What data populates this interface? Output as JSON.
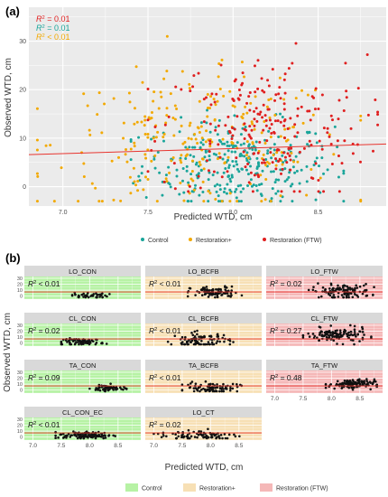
{
  "colors": {
    "panel_bg": "#ebebeb",
    "grid": "#ffffff",
    "strip_bg": "#d9d9d9",
    "fit_line": "#e8352f",
    "control": "#1aa59a",
    "restoration_plus": "#f2a900",
    "restoration_ftw": "#e01f1f",
    "bg_control": "#b7f2a5",
    "bg_restoration_plus": "#f7e0b5",
    "bg_restoration_ftw": "#f5b8b8"
  },
  "chart_data": [
    {
      "type": "scatter",
      "panel_label": "(a)",
      "xlabel": "Predicted WTD, cm",
      "ylabel": "Observed WTD, cm",
      "xlim": [
        6.8,
        8.9
      ],
      "ylim": [
        -4,
        37
      ],
      "xticks": [
        "7.0",
        "7.5",
        "8.0",
        "8.5"
      ],
      "yticks": [
        "0",
        "10",
        "20",
        "30"
      ],
      "xtick_values": [
        7.0,
        7.5,
        8.0,
        8.5
      ],
      "ytick_values": [
        0,
        10,
        20,
        30
      ],
      "fit_line": {
        "x": [
          6.8,
          8.9
        ],
        "y": [
          6.6,
          8.8
        ]
      },
      "stats": [
        {
          "prefix": "R",
          "sup": "2",
          "rest": " = 0.01",
          "color": "#e01f1f"
        },
        {
          "prefix": "R",
          "sup": "2",
          "rest": " = 0.01",
          "color": "#1aa59a"
        },
        {
          "prefix": "R",
          "sup": "2",
          "rest": " < 0.01",
          "color": "#f2a900"
        }
      ],
      "series": [
        {
          "name": "Control",
          "color": "#1aa59a",
          "n": 300,
          "x_range": [
            7.4,
            8.65
          ],
          "y_mean": 4.5,
          "y_sd": 4.5,
          "y_min": -3,
          "y_max": 22
        },
        {
          "name": "Restoration+",
          "color": "#f2a900",
          "n": 260,
          "x_range": [
            6.85,
            8.75
          ],
          "y_mean": 9,
          "y_sd": 7,
          "y_min": -3,
          "y_max": 31
        },
        {
          "name": "Restoration (FTW)",
          "color": "#e01f1f",
          "n": 230,
          "x_range": [
            7.5,
            8.85
          ],
          "y_mean": 12,
          "y_sd": 7.5,
          "y_min": -1,
          "y_max": 35
        }
      ],
      "legend": {
        "position": "bottom",
        "items": [
          {
            "label": "Control",
            "color": "#1aa59a"
          },
          {
            "label": "Restoration+",
            "color": "#f2a900"
          },
          {
            "label": "Restoration (FTW)",
            "color": "#e01f1f"
          }
        ]
      }
    },
    {
      "type": "scatter",
      "panel_label": "(b)",
      "xlabel": "Predicted WTD, cm",
      "ylabel": "Observed WTD, cm",
      "xlim": [
        6.85,
        8.9
      ],
      "ylim": [
        -5,
        33
      ],
      "xticks": [
        "7.0",
        "7.5",
        "8.0",
        "8.5"
      ],
      "yticks": [
        "0",
        "10",
        "20",
        "30"
      ],
      "xtick_values": [
        7.0,
        7.5,
        8.0,
        8.5
      ],
      "ytick_values": [
        0,
        10,
        20,
        30
      ],
      "fit_y": 7,
      "facets": [
        {
          "title": "LO_CON",
          "stat_rest": " < 0.01",
          "group": "control",
          "row": 0,
          "col": 0,
          "n": 40,
          "x_range": [
            7.65,
            8.35
          ],
          "y_mean": 1,
          "y_sd": 2.5
        },
        {
          "title": "LO_BCFB",
          "stat_rest": " < 0.01",
          "group": "restoration_plus",
          "row": 0,
          "col": 1,
          "n": 90,
          "x_range": [
            7.6,
            8.55
          ],
          "y_mean": 6,
          "y_sd": 5
        },
        {
          "title": "LO_FTW",
          "stat_rest": " = 0.02",
          "group": "restoration_ftw",
          "row": 0,
          "col": 2,
          "n": 110,
          "x_range": [
            7.6,
            8.75
          ],
          "y_mean": 8,
          "y_sd": 6
        },
        {
          "title": "CL_CON",
          "stat_rest": " = 0.02",
          "group": "control",
          "row": 1,
          "col": 0,
          "n": 70,
          "x_range": [
            7.5,
            8.3
          ],
          "y_mean": 2,
          "y_sd": 3
        },
        {
          "title": "CL_BCFB",
          "stat_rest": " < 0.01",
          "group": "restoration_plus",
          "row": 1,
          "col": 1,
          "n": 90,
          "x_range": [
            7.25,
            8.4
          ],
          "y_mean": 4,
          "y_sd": 7
        },
        {
          "title": "CL_FTW",
          "stat_rest": " = 0.27",
          "group": "restoration_ftw",
          "row": 1,
          "col": 2,
          "n": 120,
          "x_range": [
            7.5,
            8.7
          ],
          "y_mean": 13,
          "y_sd": 6
        },
        {
          "title": "TA_CON",
          "stat_rest": " = 0.09",
          "group": "control",
          "row": 2,
          "col": 0,
          "n": 60,
          "x_range": [
            8.0,
            8.65
          ],
          "y_mean": 3,
          "y_sd": 3
        },
        {
          "title": "TA_BCFB",
          "stat_rest": " < 0.01",
          "group": "restoration_plus",
          "row": 2,
          "col": 1,
          "n": 80,
          "x_range": [
            7.5,
            8.55
          ],
          "y_mean": 4,
          "y_sd": 4
        },
        {
          "title": "TA_FTW",
          "stat_rest": " = 0.48",
          "group": "restoration_ftw",
          "row": 2,
          "col": 2,
          "n": 110,
          "x_range": [
            7.9,
            8.8
          ],
          "y_mean": 10,
          "y_sd": 4
        },
        {
          "title": "CL_CON_EC",
          "stat_rest": " < 0.01",
          "group": "control",
          "row": 3,
          "col": 0,
          "n": 110,
          "x_range": [
            7.4,
            8.45
          ],
          "y_mean": 3,
          "y_sd": 3
        },
        {
          "title": "LO_CT",
          "stat_rest": " = 0.02",
          "group": "restoration_plus",
          "row": 3,
          "col": 1,
          "n": 80,
          "x_range": [
            7.0,
            8.6
          ],
          "y_mean": 3,
          "y_sd": 5
        }
      ],
      "legend": {
        "position": "bottom",
        "items": [
          {
            "label": "Control",
            "color": "#b7f2a5"
          },
          {
            "label": "Restoration+",
            "color": "#f7e0b5"
          },
          {
            "label": "Restoration (FTW)",
            "color": "#f5b8b8"
          }
        ]
      }
    }
  ]
}
